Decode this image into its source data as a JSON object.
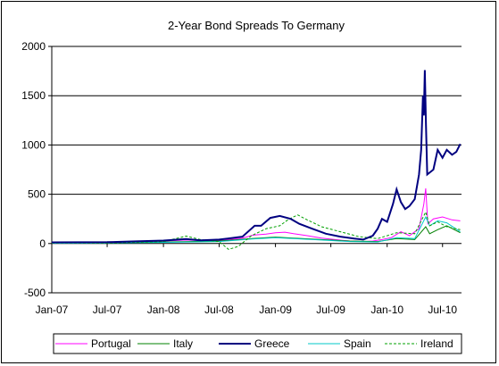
{
  "chart_data": {
    "type": "line",
    "title": "2-Year Bond Spreads To Germany",
    "xlabel": "",
    "ylabel": "",
    "ylim": [
      -500,
      2000
    ],
    "yticks": [
      -500,
      0,
      500,
      1000,
      1500,
      2000
    ],
    "xlim": [
      "2007-01",
      "2010-09"
    ],
    "xticks": [
      "Jan-07",
      "Jul-07",
      "Jan-08",
      "Jul-08",
      "Jan-09",
      "Jul-09",
      "Jan-10",
      "Jul-10"
    ],
    "grid": "horizontal",
    "legend": "bottom",
    "series": [
      {
        "name": "Portugal",
        "color": "#ff00ff",
        "style": "solid",
        "points": [
          [
            "2007-01-01",
            8
          ],
          [
            "2007-04-01",
            9
          ],
          [
            "2007-07-01",
            10
          ],
          [
            "2007-10-01",
            15
          ],
          [
            "2008-01-01",
            25
          ],
          [
            "2008-03-15",
            35
          ],
          [
            "2008-05-01",
            30
          ],
          [
            "2008-07-01",
            30
          ],
          [
            "2008-09-15",
            55
          ],
          [
            "2008-10-20",
            85
          ],
          [
            "2008-12-01",
            95
          ],
          [
            "2009-01-01",
            110
          ],
          [
            "2009-02-01",
            115
          ],
          [
            "2009-03-01",
            100
          ],
          [
            "2009-04-15",
            80
          ],
          [
            "2009-06-01",
            55
          ],
          [
            "2009-07-15",
            40
          ],
          [
            "2009-09-01",
            25
          ],
          [
            "2009-10-15",
            20
          ],
          [
            "2009-11-15",
            25
          ],
          [
            "2009-12-15",
            40
          ],
          [
            "2010-01-15",
            60
          ],
          [
            "2010-02-15",
            120
          ],
          [
            "2010-03-15",
            80
          ],
          [
            "2010-04-15",
            150
          ],
          [
            "2010-05-01",
            400
          ],
          [
            "2010-05-07",
            560
          ],
          [
            "2010-05-14",
            200
          ],
          [
            "2010-06-01",
            250
          ],
          [
            "2010-07-01",
            270
          ],
          [
            "2010-08-01",
            240
          ],
          [
            "2010-08-28",
            230
          ]
        ]
      },
      {
        "name": "Italy",
        "color": "#008000",
        "style": "solid",
        "points": [
          [
            "2007-01-01",
            5
          ],
          [
            "2007-07-01",
            6
          ],
          [
            "2008-01-01",
            15
          ],
          [
            "2008-07-01",
            25
          ],
          [
            "2008-10-15",
            50
          ],
          [
            "2009-01-01",
            65
          ],
          [
            "2009-03-01",
            55
          ],
          [
            "2009-06-01",
            40
          ],
          [
            "2009-09-01",
            25
          ],
          [
            "2009-12-01",
            20
          ],
          [
            "2010-02-01",
            50
          ],
          [
            "2010-04-01",
            40
          ],
          [
            "2010-05-07",
            170
          ],
          [
            "2010-05-20",
            100
          ],
          [
            "2010-06-15",
            140
          ],
          [
            "2010-07-15",
            180
          ],
          [
            "2010-08-28",
            110
          ]
        ]
      },
      {
        "name": "Greece",
        "color": "#000080",
        "style": "solid",
        "points": [
          [
            "2007-01-01",
            12
          ],
          [
            "2007-04-01",
            13
          ],
          [
            "2007-07-01",
            14
          ],
          [
            "2007-10-01",
            22
          ],
          [
            "2008-01-01",
            30
          ],
          [
            "2008-03-15",
            45
          ],
          [
            "2008-05-01",
            32
          ],
          [
            "2008-07-01",
            40
          ],
          [
            "2008-09-15",
            70
          ],
          [
            "2008-10-25",
            180
          ],
          [
            "2008-11-15",
            180
          ],
          [
            "2008-12-15",
            260
          ],
          [
            "2009-01-15",
            280
          ],
          [
            "2009-02-20",
            250
          ],
          [
            "2009-03-20",
            200
          ],
          [
            "2009-05-01",
            150
          ],
          [
            "2009-06-15",
            100
          ],
          [
            "2009-08-01",
            70
          ],
          [
            "2009-09-15",
            50
          ],
          [
            "2009-10-15",
            40
          ],
          [
            "2009-11-15",
            80
          ],
          [
            "2009-12-01",
            150
          ],
          [
            "2009-12-15",
            250
          ],
          [
            "2010-01-01",
            220
          ],
          [
            "2010-01-20",
            400
          ],
          [
            "2010-02-01",
            550
          ],
          [
            "2010-02-15",
            420
          ],
          [
            "2010-03-01",
            350
          ],
          [
            "2010-03-15",
            380
          ],
          [
            "2010-04-01",
            450
          ],
          [
            "2010-04-15",
            700
          ],
          [
            "2010-04-22",
            950
          ],
          [
            "2010-04-28",
            1500
          ],
          [
            "2010-05-01",
            1300
          ],
          [
            "2010-05-04",
            1760
          ],
          [
            "2010-05-08",
            1200
          ],
          [
            "2010-05-12",
            700
          ],
          [
            "2010-06-01",
            750
          ],
          [
            "2010-06-15",
            950
          ],
          [
            "2010-07-01",
            870
          ],
          [
            "2010-07-15",
            950
          ],
          [
            "2010-08-01",
            900
          ],
          [
            "2010-08-15",
            930
          ],
          [
            "2010-08-28",
            1010
          ]
        ]
      },
      {
        "name": "Spain",
        "color": "#00c8c8",
        "style": "solid",
        "points": [
          [
            "2007-01-01",
            3
          ],
          [
            "2007-07-01",
            5
          ],
          [
            "2008-01-01",
            12
          ],
          [
            "2008-07-01",
            20
          ],
          [
            "2008-10-15",
            45
          ],
          [
            "2009-01-01",
            60
          ],
          [
            "2009-03-01",
            50
          ],
          [
            "2009-06-01",
            35
          ],
          [
            "2009-09-01",
            20
          ],
          [
            "2009-12-01",
            15
          ],
          [
            "2010-02-01",
            60
          ],
          [
            "2010-04-01",
            50
          ],
          [
            "2010-05-07",
            270
          ],
          [
            "2010-05-20",
            180
          ],
          [
            "2010-06-15",
            230
          ],
          [
            "2010-07-15",
            210
          ],
          [
            "2010-08-28",
            120
          ]
        ]
      },
      {
        "name": "Ireland",
        "color": "#00a000",
        "style": "dashed",
        "points": [
          [
            "2007-01-01",
            5
          ],
          [
            "2007-07-01",
            6
          ],
          [
            "2008-01-01",
            20
          ],
          [
            "2008-03-15",
            75
          ],
          [
            "2008-05-01",
            40
          ],
          [
            "2008-07-01",
            20
          ],
          [
            "2008-08-01",
            -60
          ],
          [
            "2008-09-01",
            -30
          ],
          [
            "2008-10-15",
            80
          ],
          [
            "2008-12-01",
            150
          ],
          [
            "2009-01-15",
            180
          ],
          [
            "2009-02-15",
            250
          ],
          [
            "2009-03-15",
            290
          ],
          [
            "2009-04-15",
            240
          ],
          [
            "2009-06-01",
            170
          ],
          [
            "2009-08-01",
            120
          ],
          [
            "2009-10-01",
            70
          ],
          [
            "2009-12-01",
            50
          ],
          [
            "2010-02-01",
            110
          ],
          [
            "2010-04-01",
            100
          ],
          [
            "2010-05-07",
            320
          ],
          [
            "2010-05-20",
            180
          ],
          [
            "2010-06-15",
            220
          ],
          [
            "2010-07-15",
            170
          ],
          [
            "2010-08-28",
            140
          ]
        ]
      }
    ]
  }
}
